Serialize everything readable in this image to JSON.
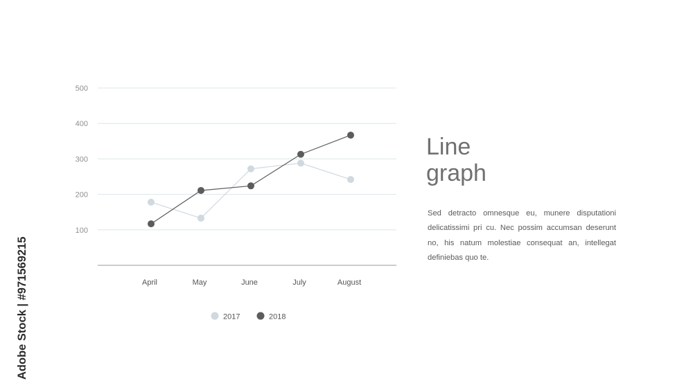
{
  "heading": [
    "Line",
    "graph"
  ],
  "body_text": "Sed detracto omnesque eu, munere disputationi delicatissimi pri cu. Nec possim accumsan deserunt no, his natum molestiae consequat an, intellegat definiebas quo te.",
  "watermark": "Adobe Stock | #971569215",
  "colors": {
    "series_2017": "#cfd9df",
    "series_2018": "#5c5c5c",
    "grid": "#dde7ea",
    "text": "#707070"
  },
  "chart_data": {
    "type": "line",
    "title": "",
    "xlabel": "",
    "ylabel": "",
    "categories": [
      "April",
      "May",
      "June",
      "July",
      "August"
    ],
    "y_ticks": [
      "500",
      "400",
      "300",
      "200",
      "100"
    ],
    "ylim": [
      0,
      500
    ],
    "grid": true,
    "legend_position": "bottom-center",
    "series": [
      {
        "name": "2017",
        "values": [
          178,
          133,
          272,
          288,
          242
        ],
        "color": "#cfd9df"
      },
      {
        "name": "2018",
        "values": [
          117,
          211,
          224,
          313,
          367
        ],
        "color": "#5c5c5c"
      }
    ]
  }
}
